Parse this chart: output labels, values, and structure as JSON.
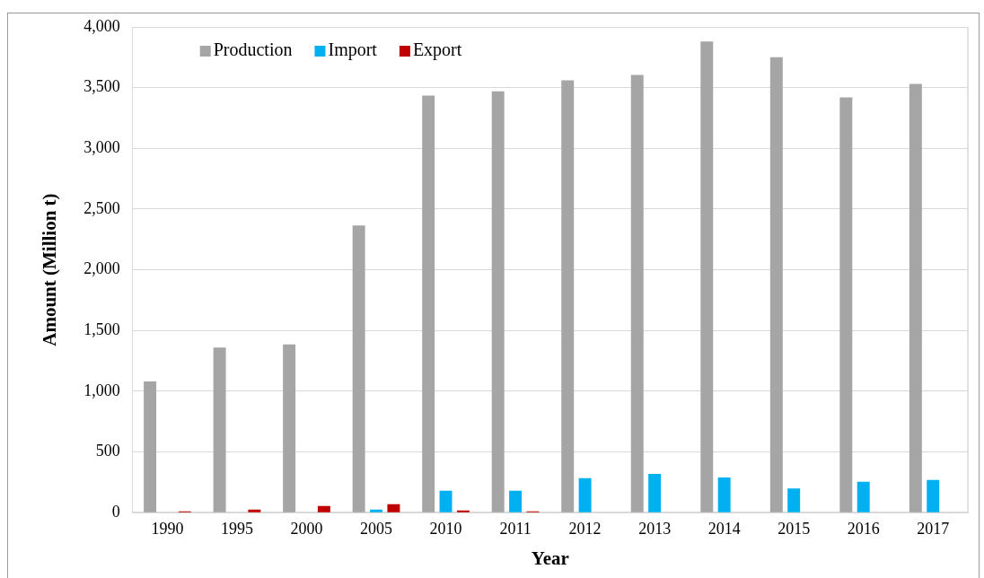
{
  "chart_data": {
    "type": "bar",
    "xlabel": "Year",
    "ylabel": "Amount (Million t)",
    "categories": [
      "1990",
      "1995",
      "2000",
      "2005",
      "2010",
      "2011",
      "2012",
      "2013",
      "2014",
      "2015",
      "2016",
      "2017"
    ],
    "series": [
      {
        "name": "Production",
        "color": "#a5a5a5",
        "values": [
          1080,
          1360,
          1385,
          2365,
          3435,
          3470,
          3560,
          3605,
          3880,
          3750,
          3420,
          3530
        ]
      },
      {
        "name": "Import",
        "color": "#00b0f0",
        "values": [
          0,
          0,
          0,
          25,
          180,
          180,
          285,
          320,
          290,
          200,
          255,
          270
        ]
      },
      {
        "name": "Export",
        "color": "#c00000",
        "values": [
          10,
          25,
          55,
          70,
          18,
          10,
          0,
          0,
          0,
          0,
          0,
          0
        ]
      }
    ],
    "ylim": [
      0,
      4000
    ],
    "yticks": [
      {
        "value": 0,
        "label": "0"
      },
      {
        "value": 500,
        "label": "500"
      },
      {
        "value": 1000,
        "label": "1,000"
      },
      {
        "value": 1500,
        "label": "1,500"
      },
      {
        "value": 2000,
        "label": "2,000"
      },
      {
        "value": 2500,
        "label": "2,500"
      },
      {
        "value": 3000,
        "label": "3,000"
      },
      {
        "value": 3500,
        "label": "3,500"
      },
      {
        "value": 4000,
        "label": "4,000"
      }
    ],
    "grid": "y",
    "legend": "top left"
  }
}
